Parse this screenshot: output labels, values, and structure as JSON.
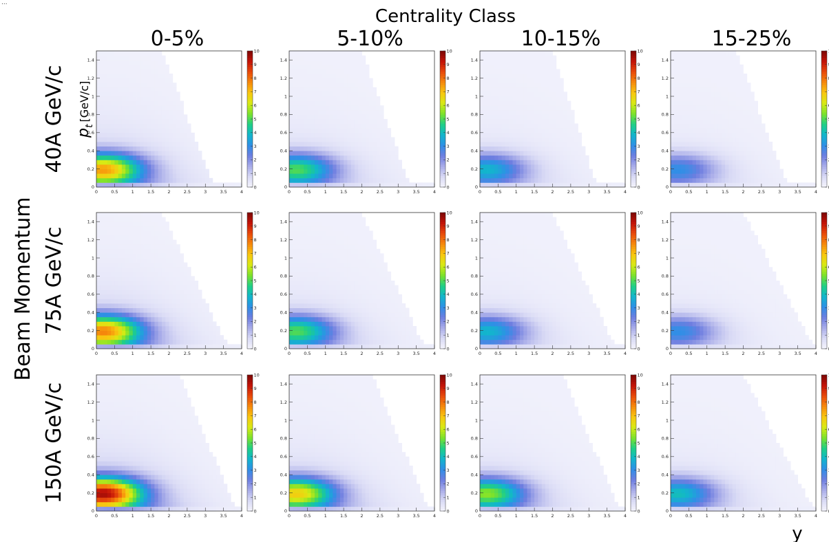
{
  "figure": {
    "caption_fragment": "...",
    "title": "Centrality Class",
    "row_group_label": "Beam Momentum",
    "x_axis_label": "y",
    "y_axis_label_main": "p",
    "y_axis_label_sub": "t",
    "y_axis_unit": "[GeV/c]",
    "col_labels": [
      "0-5%",
      "5-10%",
      "10-15%",
      "15-25%"
    ],
    "row_labels": [
      "40A GeV/c",
      "75A GeV/c",
      "150A GeV/c"
    ],
    "x_ticks": [
      "0",
      "0.5",
      "1",
      "1.5",
      "2",
      "2.5",
      "3",
      "3.5",
      "4"
    ],
    "y_ticks": [
      "0.2",
      "0.4",
      "0.6",
      "0.8",
      "1",
      "1.2",
      "1.4"
    ],
    "z_ticks": [
      "0",
      "1",
      "2",
      "3",
      "4",
      "5",
      "6",
      "7",
      "8",
      "9",
      "10"
    ]
  },
  "colors": {
    "low": "#f3f3fc",
    "colormap": [
      "#f5f5fd",
      "#d9daf5",
      "#a9ade9",
      "#6e7ee0",
      "#2f8fe6",
      "#12b6cc",
      "#20cf86",
      "#7be22c",
      "#d8ea14",
      "#f8c710",
      "#f68a0c",
      "#e84a0b",
      "#c41408",
      "#7c0806"
    ]
  },
  "chart_data": {
    "type": "heatmap",
    "title": "Centrality Class",
    "xlabel": "y",
    "ylabel": "p_t [GeV/c]",
    "xlim": [
      0,
      4
    ],
    "ylim": [
      0,
      1.5
    ],
    "zlim": [
      0,
      10
    ],
    "columns": [
      "0-5%",
      "5-10%",
      "10-15%",
      "15-25%"
    ],
    "rows": [
      "40A GeV/c",
      "75A GeV/c",
      "150A GeV/c"
    ],
    "peak_y": 0.2,
    "peak_pt": 0.2,
    "peak_values": [
      [
        7.5,
        5.0,
        3.8,
        3.0
      ],
      [
        7.8,
        5.0,
        3.8,
        3.0
      ],
      [
        9.6,
        6.8,
        5.5,
        4.0
      ]
    ],
    "acceptance_edge_ymax": [
      [
        3.2,
        3.3,
        3.2,
        3.2
      ],
      [
        3.6,
        3.7,
        3.7,
        3.9
      ],
      [
        3.8,
        3.8,
        3.8,
        3.9
      ]
    ],
    "acceptance_edge_ptmax_at_y0": 1.5,
    "acceptance_edge_y_at_ptmax": [
      [
        1.8,
        2.0,
        2.0,
        1.8
      ],
      [
        1.8,
        2.0,
        2.0,
        2.0
      ],
      [
        2.3,
        2.3,
        2.3,
        2.0
      ]
    ]
  }
}
